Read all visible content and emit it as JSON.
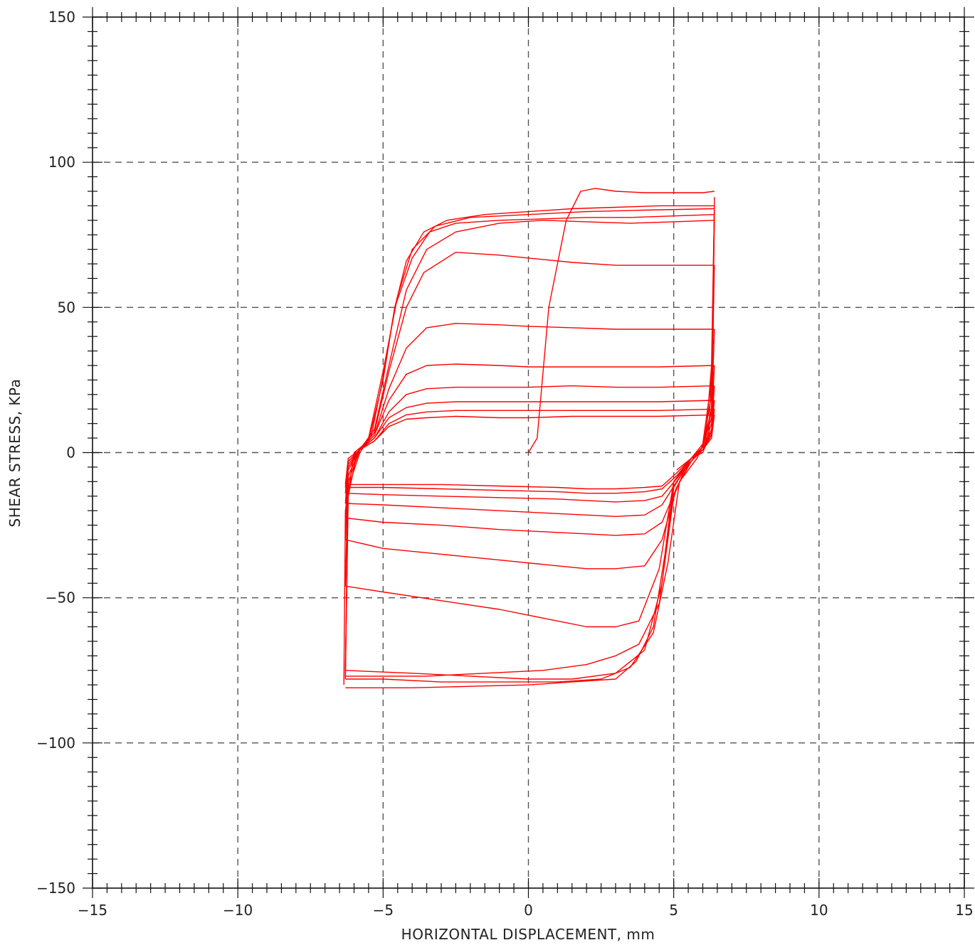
{
  "chart_data": {
    "type": "line",
    "title": "",
    "xlabel": "HORIZONTAL DISPLACEMENT, mm",
    "ylabel": "SHEAR STRESS, KPa",
    "xlim": [
      -15,
      15
    ],
    "ylim": [
      -150,
      150
    ],
    "xticks": [
      -15,
      -10,
      -5,
      0,
      5,
      10,
      15
    ],
    "yticks": [
      -150,
      -100,
      -50,
      0,
      50,
      100,
      150
    ],
    "xtick_labels": [
      "−15",
      "−10",
      "−5",
      "0",
      "5",
      "10",
      "15"
    ],
    "ytick_labels": [
      "−150",
      "−100",
      "−50",
      "0",
      "50",
      "100",
      "150"
    ],
    "grid": true,
    "grid_style": "dashed",
    "series_color": "#ff0000",
    "series": [
      {
        "x": [
          0,
          0.3,
          0.7,
          1.0,
          1.3,
          1.8,
          2.3,
          3.0,
          4.0,
          5.0,
          6.0,
          6.4
        ],
        "y": [
          0,
          5,
          50,
          65,
          80,
          90,
          91,
          90,
          89.5,
          89.5,
          89.5,
          90
        ]
      },
      {
        "x": [
          6.4,
          6.35,
          6.2,
          6.0,
          5.6,
          5.0,
          4.7,
          4.3,
          3.7,
          3.0,
          1.5,
          0,
          -2.0,
          -4.0,
          -5.5,
          -6.3
        ],
        "y": [
          88,
          40,
          5,
          0,
          -2,
          -10,
          -35,
          -60,
          -72,
          -78,
          -79,
          -80,
          -80.5,
          -81,
          -81,
          -81
        ]
      },
      {
        "x": [
          -6.35,
          -6.3,
          -6.0,
          -5.5,
          -5.0,
          -4.6,
          -4.2,
          -3.6,
          -2.8,
          -1.5,
          0,
          1.5,
          3.0,
          4.5,
          6.0,
          6.4
        ],
        "y": [
          -80,
          -20,
          0,
          4,
          25,
          50,
          66,
          76,
          80,
          82,
          83,
          84,
          84.5,
          85,
          85,
          85
        ]
      },
      {
        "x": [
          6.4,
          6.3,
          6.1,
          5.8,
          5.2,
          4.8,
          4.3,
          3.5,
          2.5,
          1.0,
          -1.0,
          -3.0,
          -5.0,
          -6.3
        ],
        "y": [
          85,
          30,
          5,
          -2,
          -10,
          -38,
          -62,
          -74,
          -78,
          -79,
          -79,
          -79,
          -78,
          -78
        ]
      },
      {
        "x": [
          -6.3,
          -6.2,
          -5.9,
          -5.5,
          -5.0,
          -4.5,
          -4.0,
          -3.2,
          -2.0,
          0,
          2.0,
          4.0,
          6.4
        ],
        "y": [
          -78,
          -15,
          0,
          5,
          28,
          54,
          70,
          78,
          81,
          82,
          83,
          83.5,
          84
        ]
      },
      {
        "x": [
          6.4,
          6.3,
          6.0,
          5.6,
          5.0,
          4.6,
          4.0,
          3.0,
          1.5,
          0,
          -2.0,
          -4.0,
          -6.3
        ],
        "y": [
          84,
          25,
          3,
          -2,
          -12,
          -45,
          -68,
          -76,
          -78,
          -78,
          -77,
          -76,
          -75
        ]
      },
      {
        "x": [
          -6.3,
          -6.2,
          -5.8,
          -5.4,
          -5.0,
          -4.6,
          -4.0,
          -3.4,
          -2.5,
          -1.0,
          0.5,
          2.0,
          3.5,
          5.0,
          6.4
        ],
        "y": [
          -75,
          -12,
          0,
          6,
          26,
          50,
          67,
          76,
          79,
          80,
          80.5,
          81,
          81,
          81.5,
          82
        ]
      },
      {
        "x": [
          6.4,
          6.3,
          6.0,
          5.5,
          5.0,
          4.5,
          3.8,
          3.0,
          2.0,
          0.5,
          -1.5,
          -3.5,
          -5.5,
          -6.3
        ],
        "y": [
          82,
          20,
          2,
          -3,
          -15,
          -52,
          -66,
          -70,
          -73,
          -75,
          -76,
          -77,
          -77,
          -77
        ]
      },
      {
        "x": [
          -6.3,
          -6.2,
          -5.8,
          -5.3,
          -4.8,
          -4.2,
          -3.5,
          -2.5,
          -1.0,
          0.5,
          2.0,
          3.5,
          5.0,
          6.4
        ],
        "y": [
          -77,
          -10,
          1,
          8,
          30,
          56,
          70,
          76,
          79,
          80,
          79.5,
          79,
          79.5,
          80
        ]
      },
      {
        "x": [
          6.4,
          6.3,
          6.0,
          5.6,
          5.0,
          4.5,
          3.8,
          3.0,
          2.0,
          1.0,
          0,
          -1.0,
          -3.0,
          -5.0,
          -6.3
        ],
        "y": [
          80,
          15,
          2,
          -3,
          -10,
          -40,
          -58,
          -60,
          -60,
          -58,
          -56,
          -54,
          -51,
          -48,
          -46
        ]
      },
      {
        "x": [
          -6.3,
          -6.2,
          -5.8,
          -5.3,
          -4.8,
          -4.2,
          -3.6,
          -2.5,
          -1.0,
          0,
          1.5,
          3.0,
          4.5,
          6.4
        ],
        "y": [
          -46,
          -8,
          1,
          7,
          28,
          50,
          62,
          69,
          68,
          67,
          65.5,
          64.5,
          64.5,
          64.5
        ]
      },
      {
        "x": [
          6.4,
          6.3,
          6.0,
          5.6,
          5.1,
          4.6,
          4.0,
          3.0,
          2.0,
          1.0,
          -1.0,
          -3.0,
          -5.0,
          -6.3
        ],
        "y": [
          64.5,
          14,
          2,
          -3,
          -12,
          -30,
          -39,
          -40,
          -40,
          -39,
          -37,
          -35,
          -33,
          -30
        ]
      },
      {
        "x": [
          -6.3,
          -6.2,
          -5.8,
          -5.3,
          -4.8,
          -4.2,
          -3.5,
          -2.5,
          -1.0,
          0,
          1.5,
          3.0,
          4.5,
          6.4
        ],
        "y": [
          -30,
          -6,
          1,
          6,
          22,
          36,
          43,
          44.5,
          44,
          43.5,
          43,
          42.5,
          42.5,
          42.5
        ]
      },
      {
        "x": [
          6.4,
          6.3,
          6.0,
          5.6,
          5.1,
          4.6,
          4.0,
          3.0,
          2.0,
          1.0,
          -1.0,
          -3.0,
          -5.0,
          -6.3
        ],
        "y": [
          42.5,
          12,
          2,
          -3,
          -12,
          -24,
          -28,
          -28.5,
          -28,
          -27.5,
          -26.5,
          -25,
          -24,
          -22.5
        ]
      },
      {
        "x": [
          -6.3,
          -6.2,
          -5.8,
          -5.3,
          -4.8,
          -4.2,
          -3.5,
          -2.5,
          -1.0,
          0,
          1.5,
          3.0,
          4.5,
          6.4
        ],
        "y": [
          -22.5,
          -5,
          1,
          6,
          18,
          27,
          30,
          30.5,
          30,
          29.5,
          29.5,
          29.5,
          29.5,
          30
        ]
      },
      {
        "x": [
          6.4,
          6.3,
          6.0,
          5.6,
          5.1,
          4.6,
          4.0,
          3.0,
          2.0,
          1.0,
          -1.0,
          -3.0,
          -5.0,
          -6.3
        ],
        "y": [
          30,
          10,
          1,
          -3,
          -10,
          -18,
          -21.5,
          -22,
          -21.5,
          -21,
          -20,
          -19,
          -18,
          -17.5
        ]
      },
      {
        "x": [
          -6.3,
          -6.2,
          -5.8,
          -5.3,
          -4.8,
          -4.2,
          -3.5,
          -2.5,
          -1.0,
          0,
          1.5,
          3.0,
          4.5,
          6.4
        ],
        "y": [
          -17.5,
          -4,
          1,
          5,
          14,
          20,
          22,
          22.5,
          22.5,
          22.5,
          23,
          22.5,
          22.5,
          23
        ]
      },
      {
        "x": [
          6.4,
          6.3,
          6.0,
          5.6,
          5.1,
          4.6,
          4.0,
          3.0,
          2.0,
          1.0,
          -1.0,
          -3.0,
          -5.0,
          -6.3
        ],
        "y": [
          23,
          8,
          1,
          -3,
          -9,
          -15,
          -16.5,
          -17,
          -16.5,
          -16,
          -15.5,
          -15,
          -14.5,
          -14
        ]
      },
      {
        "x": [
          -6.3,
          -6.2,
          -5.8,
          -5.3,
          -4.8,
          -4.2,
          -3.5,
          -2.5,
          -1.0,
          0,
          1.5,
          3.0,
          4.5,
          6.4
        ],
        "y": [
          -14,
          -3,
          1,
          5,
          12,
          15.5,
          17,
          17.5,
          17.5,
          17.5,
          17.5,
          17.5,
          17.5,
          18
        ]
      },
      {
        "x": [
          6.4,
          6.3,
          6.0,
          5.6,
          5.1,
          4.6,
          4.0,
          3.0,
          2.0,
          1.0,
          -1.0,
          -3.0,
          -5.0,
          -6.3
        ],
        "y": [
          18,
          7,
          1,
          -2,
          -8,
          -12.5,
          -13.5,
          -14,
          -14,
          -13.5,
          -13,
          -12.5,
          -12,
          -12
        ]
      },
      {
        "x": [
          -6.3,
          -6.2,
          -5.8,
          -5.3,
          -4.8,
          -4.2,
          -3.5,
          -2.5,
          -1.0,
          0,
          1.5,
          3.0,
          4.5,
          6.4
        ],
        "y": [
          -12,
          -3,
          1,
          4,
          10,
          13,
          14,
          14.5,
          14.5,
          14.5,
          14.5,
          14.5,
          14.5,
          15
        ]
      },
      {
        "x": [
          6.4,
          6.3,
          6.0,
          5.6,
          5.1,
          4.6,
          4.0,
          3.0,
          2.0,
          1.0,
          -1.0,
          -3.0,
          -5.0,
          -6.3
        ],
        "y": [
          15,
          6,
          1,
          -2,
          -7,
          -11.5,
          -12,
          -12.5,
          -12.5,
          -12,
          -11.5,
          -11,
          -11,
          -11
        ]
      },
      {
        "x": [
          -6.3,
          -6.2,
          -5.8,
          -5.3,
          -4.8,
          -4.2,
          -3.5,
          -2.5,
          -1.0,
          0,
          1.5,
          3.0,
          4.5,
          6.4
        ],
        "y": [
          -11,
          -2,
          1,
          4,
          9,
          11.5,
          12,
          12.5,
          12,
          12,
          12.5,
          12.5,
          12.5,
          13
        ]
      },
      {
        "x": [
          6.4,
          6.3,
          6.0,
          5.6,
          5.1
        ],
        "y": [
          13,
          5,
          1,
          -2,
          -6
        ]
      }
    ]
  }
}
